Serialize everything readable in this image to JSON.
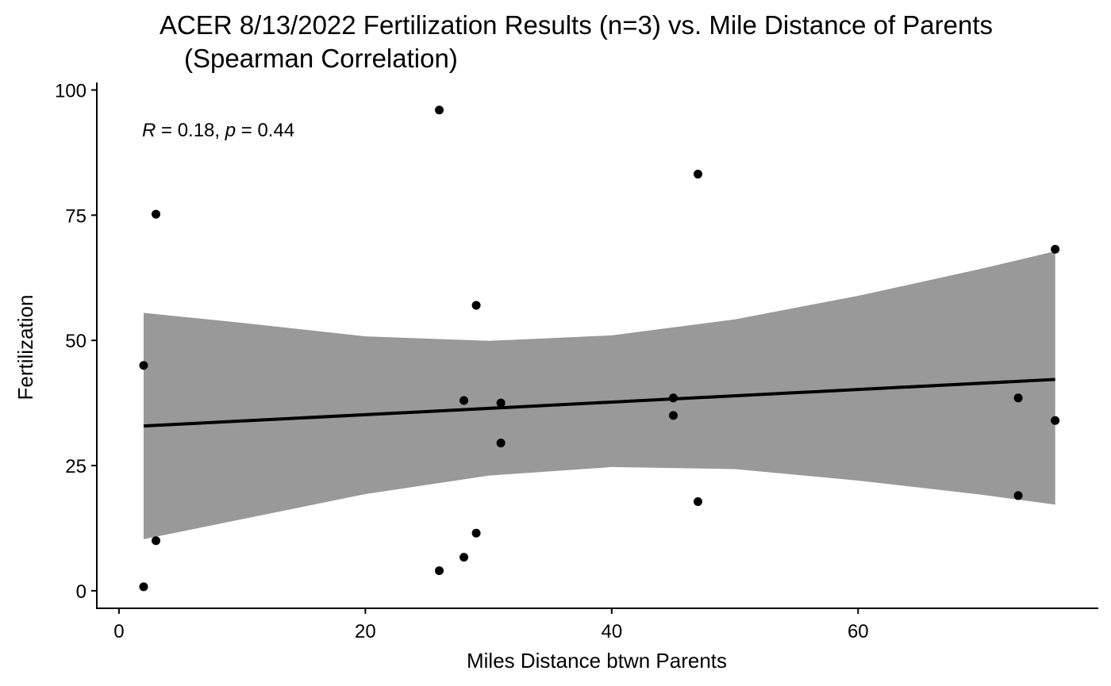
{
  "chart_data": {
    "type": "scatter",
    "title_line1": "ACER 8/13/2022 Fertilization Results (n=3) vs. Mile Distance of Parents",
    "title_line2": "(Spearman Correlation)",
    "xlabel": "Miles Distance btwn Parents",
    "ylabel": "Fertilization",
    "xlim": [
      -1.8,
      79.5
    ],
    "ylim": [
      -3.5,
      101.5
    ],
    "x_ticks": [
      0,
      20,
      40,
      60
    ],
    "y_ticks": [
      0,
      25,
      50,
      75,
      100
    ],
    "grid": false,
    "annotation": {
      "r_label": "R",
      "r_text": " = 0.18, ",
      "p_label": "p",
      "p_text": " = 0.44"
    },
    "points": [
      {
        "x": 2,
        "y": 0.8
      },
      {
        "x": 2,
        "y": 45
      },
      {
        "x": 3,
        "y": 75.2
      },
      {
        "x": 3,
        "y": 10
      },
      {
        "x": 26,
        "y": 96
      },
      {
        "x": 26,
        "y": 4
      },
      {
        "x": 28,
        "y": 38
      },
      {
        "x": 28,
        "y": 6.7
      },
      {
        "x": 29,
        "y": 57
      },
      {
        "x": 29,
        "y": 11.5
      },
      {
        "x": 31,
        "y": 37.5
      },
      {
        "x": 31,
        "y": 29.5
      },
      {
        "x": 45,
        "y": 38.5
      },
      {
        "x": 45,
        "y": 35
      },
      {
        "x": 47,
        "y": 83.2
      },
      {
        "x": 47,
        "y": 17.8
      },
      {
        "x": 73,
        "y": 38.5
      },
      {
        "x": 73,
        "y": 19
      },
      {
        "x": 76,
        "y": 68.2
      },
      {
        "x": 76,
        "y": 34
      }
    ],
    "trend_line": {
      "x": [
        2,
        76
      ],
      "y": [
        32.9,
        42.2
      ]
    },
    "confidence_band": {
      "x": [
        2,
        10,
        20,
        30,
        40,
        50,
        60,
        70,
        76
      ],
      "upper": [
        55.5,
        53.5,
        50.8,
        49.9,
        51.0,
        54.2,
        58.9,
        64.3,
        67.8
      ],
      "lower": [
        10.3,
        14.3,
        19.3,
        23.0,
        24.7,
        24.3,
        22.0,
        19.2,
        17.2
      ]
    },
    "colors": {
      "points": "#000000",
      "line": "#000000",
      "band": "#999999"
    }
  }
}
